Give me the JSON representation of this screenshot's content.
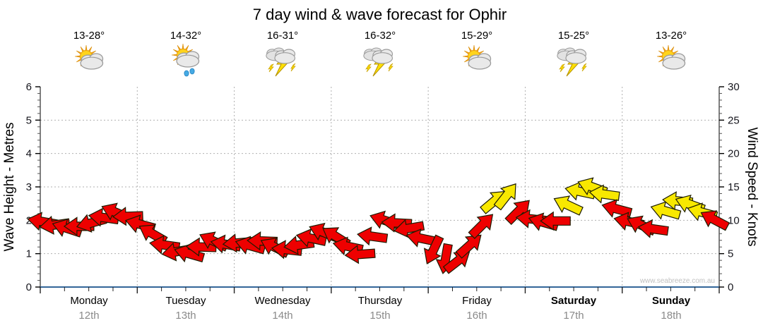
{
  "title": "7 day wind & wave forecast for Ophir",
  "watermark": "www.seabreeze.com.au",
  "y_left": {
    "label": "Wave Height - Metres",
    "ticks": [
      0,
      1,
      2,
      3,
      4,
      5,
      6
    ],
    "range": [
      0,
      6
    ]
  },
  "y_right": {
    "label": "Wind Speed - Knots",
    "ticks": [
      0,
      5,
      10,
      15,
      20,
      25,
      30
    ],
    "range": [
      0,
      30
    ]
  },
  "days": [
    {
      "name": "Monday",
      "date": "12th",
      "temp_range": "13-28°",
      "icon": "sun-cloud",
      "weekend": false
    },
    {
      "name": "Tuesday",
      "date": "13th",
      "temp_range": "14-32°",
      "icon": "sun-cloud-rain",
      "weekend": false
    },
    {
      "name": "Wednesday",
      "date": "14th",
      "temp_range": "16-31°",
      "icon": "storm",
      "weekend": false
    },
    {
      "name": "Thursday",
      "date": "15th",
      "temp_range": "16-32°",
      "icon": "storm",
      "weekend": false
    },
    {
      "name": "Friday",
      "date": "16th",
      "temp_range": "15-29°",
      "icon": "sun-cloud",
      "weekend": false
    },
    {
      "name": "Saturday",
      "date": "17th",
      "temp_range": "15-25°",
      "icon": "storm",
      "weekend": true
    },
    {
      "name": "Sunday",
      "date": "18th",
      "temp_range": "13-26°",
      "icon": "sun-cloud",
      "weekend": true
    }
  ],
  "colors": {
    "arrow_red": "#ee0000",
    "arrow_yellow": "#f8e800",
    "arrow_outline": "#1c1c00",
    "wave_line_blue": "#336699",
    "grid_gray": "#b0b0b0",
    "tick_text": "#16161d",
    "date_gray": "#8a8a8a",
    "watermark_gray": "#c0c0c0"
  },
  "chart_data": {
    "type": "wind-arrows",
    "title": "7 day wind & wave forecast for Ophir",
    "x_axis": "7 days at 3-hourly intervals (Monday 12th - Sunday 18th)",
    "ylabel_left": "Wave Height - Metres",
    "ylabel_right": "Wind Speed - Knots",
    "ylim_left": [
      0,
      6
    ],
    "ylim_right": [
      0,
      30
    ],
    "grid": "dotted horizontal at integers, dotted vertical at day boundaries",
    "wave_height_m_series": "flat 0 (no waves - inland location), blue line along x-axis",
    "arrow_color_legend": {
      "r": "red = under ~12 knots",
      "y": "yellow = ~12-15 knots"
    },
    "arrows_note": "each entry: [wind_speed_knots, screen_direction_deg_cw_0=right, color], 8 per day",
    "arrows": [
      [
        9.8,
        190,
        "r"
      ],
      [
        9.3,
        172,
        "r"
      ],
      [
        8.8,
        198,
        "r"
      ],
      [
        9.1,
        180,
        "r"
      ],
      [
        9.6,
        165,
        "r"
      ],
      [
        10.4,
        188,
        "r"
      ],
      [
        11.2,
        203,
        "r"
      ],
      [
        10.6,
        178,
        "r"
      ],
      [
        9.4,
        195,
        "r"
      ],
      [
        8.0,
        210,
        "r"
      ],
      [
        6.3,
        188,
        "r"
      ],
      [
        5.3,
        170,
        "r"
      ],
      [
        5.0,
        196,
        "r"
      ],
      [
        6.0,
        182,
        "r"
      ],
      [
        6.9,
        205,
        "r"
      ],
      [
        6.4,
        190,
        "r"
      ],
      [
        6.6,
        175,
        "r"
      ],
      [
        6.2,
        196,
        "r"
      ],
      [
        6.9,
        182,
        "r"
      ],
      [
        6.0,
        206,
        "r"
      ],
      [
        5.6,
        186,
        "r"
      ],
      [
        6.3,
        172,
        "r"
      ],
      [
        7.3,
        192,
        "r"
      ],
      [
        8.2,
        202,
        "r"
      ],
      [
        7.6,
        212,
        "r"
      ],
      [
        6.1,
        192,
        "r"
      ],
      [
        4.9,
        176,
        "r"
      ],
      [
        7.6,
        188,
        "r"
      ],
      [
        10.0,
        198,
        "r"
      ],
      [
        9.6,
        183,
        "r"
      ],
      [
        8.8,
        170,
        "r"
      ],
      [
        7.3,
        192,
        "r"
      ],
      [
        5.5,
        115,
        "r"
      ],
      [
        4.2,
        100,
        "r"
      ],
      [
        3.9,
        322,
        "r"
      ],
      [
        6.3,
        318,
        "r"
      ],
      [
        9.3,
        315,
        "r"
      ],
      [
        12.9,
        320,
        "y"
      ],
      [
        13.7,
        308,
        "y"
      ],
      [
        11.4,
        315,
        "r"
      ],
      [
        10.2,
        186,
        "r"
      ],
      [
        9.7,
        196,
        "r"
      ],
      [
        9.9,
        180,
        "r"
      ],
      [
        12.3,
        205,
        "y"
      ],
      [
        14.3,
        192,
        "y"
      ],
      [
        15.0,
        200,
        "y"
      ],
      [
        13.9,
        188,
        "y"
      ],
      [
        11.7,
        195,
        "r"
      ],
      [
        9.8,
        192,
        "r"
      ],
      [
        9.3,
        205,
        "r"
      ],
      [
        8.7,
        188,
        "r"
      ],
      [
        11.4,
        196,
        "y"
      ],
      [
        12.9,
        185,
        "y"
      ],
      [
        12.4,
        200,
        "y"
      ],
      [
        11.2,
        195,
        "y"
      ],
      [
        10.1,
        208,
        "r"
      ]
    ]
  }
}
